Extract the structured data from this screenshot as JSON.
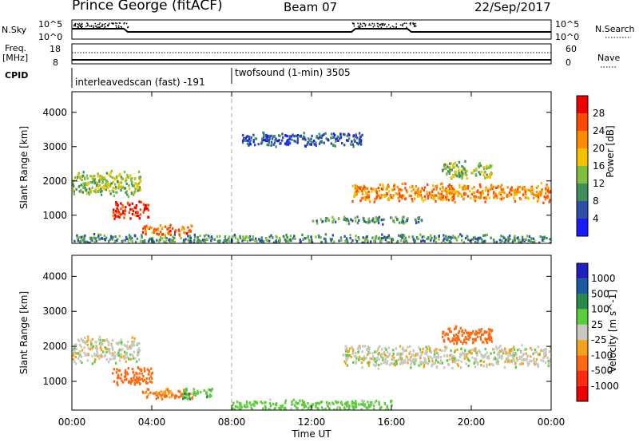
{
  "header": {
    "station": "Prince George (fitACF)",
    "beam": "Beam 07",
    "date": "22/Sep/2017"
  },
  "top_panels": {
    "nsky_label": "N.Sky",
    "nsky_ticks": [
      "10^5",
      "10^0"
    ],
    "nsearch_label": "N.Search",
    "nsearch_ticks": [
      "10^5",
      "10^0"
    ],
    "freq_label": "Freq.",
    "freq_unit": "[MHz]",
    "freq_ticks": [
      "18",
      "8"
    ],
    "nave_label": "Nave",
    "nave_ticks": [
      "60",
      "0"
    ],
    "cpid_label": "CPID",
    "cpid_segments": [
      {
        "label": "interleavedscan (fast) -191",
        "start": "00:00",
        "end": "08:00"
      },
      {
        "label": "twofsound (1-min) 3505",
        "start": "08:00",
        "end": "24:00"
      }
    ]
  },
  "colors": {
    "power_scale": [
      "#1a1aff",
      "#2d4fa8",
      "#3e8f5c",
      "#7fbf3f",
      "#f2c200",
      "#ff8c00",
      "#ff4a00",
      "#ee0000"
    ],
    "velocity_scale": [
      "#2020c0",
      "#1a5aa0",
      "#2a8a4a",
      "#5acd3a",
      "#c8c8c0",
      "#f5a21c",
      "#ff6a10",
      "#ff2a10",
      "#ee0000"
    ]
  },
  "chart_data": [
    {
      "type": "heatmap",
      "title": "",
      "xlabel": "",
      "ylabel": "Slant Range [km]",
      "xlim_hours": [
        0,
        24
      ],
      "ylim": [
        180,
        4600
      ],
      "x_ticks": [
        "00:00",
        "04:00",
        "08:00",
        "12:00",
        "16:00",
        "20:00",
        "00:00"
      ],
      "y_ticks": [
        1000,
        2000,
        3000,
        4000
      ],
      "colorbar": {
        "label": "Power [dB]",
        "ticks": [
          4,
          8,
          12,
          16,
          20,
          24,
          28
        ]
      },
      "echo_regions": [
        {
          "t_start": 0.0,
          "t_end": 3.4,
          "range_center": 1900,
          "range_width": 700,
          "power": 14
        },
        {
          "t_start": 2.0,
          "t_end": 3.8,
          "range_center": 1150,
          "range_width": 450,
          "power": 28
        },
        {
          "t_start": 3.5,
          "t_end": 6.0,
          "range_center": 550,
          "range_width": 300,
          "power": 24
        },
        {
          "t_start": 0.0,
          "t_end": 24.0,
          "range_center": 300,
          "range_width": 250,
          "power": 10
        },
        {
          "t_start": 8.5,
          "t_end": 14.5,
          "range_center": 3200,
          "range_width": 400,
          "power": 6
        },
        {
          "t_start": 14.0,
          "t_end": 24.0,
          "range_center": 1650,
          "range_width": 500,
          "power": 22
        },
        {
          "t_start": 18.5,
          "t_end": 21.0,
          "range_center": 2300,
          "range_width": 500,
          "power": 14
        },
        {
          "t_start": 12.0,
          "t_end": 17.5,
          "range_center": 850,
          "range_width": 200,
          "power": 10
        }
      ]
    },
    {
      "type": "heatmap",
      "title": "",
      "xlabel": "Time UT",
      "ylabel": "Slant Range [km]",
      "xlim_hours": [
        0,
        24
      ],
      "ylim": [
        180,
        4600
      ],
      "x_ticks": [
        "00:00",
        "04:00",
        "08:00",
        "12:00",
        "16:00",
        "20:00",
        "00:00"
      ],
      "y_ticks": [
        1000,
        2000,
        3000,
        4000
      ],
      "colorbar": {
        "label": "Velocity [m s^-1]",
        "ticks": [
          1000,
          500,
          100,
          25,
          -25,
          -100,
          -500,
          -1000
        ]
      },
      "echo_regions": [
        {
          "t_start": 0.0,
          "t_end": 3.4,
          "range_center": 1900,
          "range_width": 700,
          "velocity": 0
        },
        {
          "t_start": 2.0,
          "t_end": 4.0,
          "range_center": 1150,
          "range_width": 500,
          "velocity": -150
        },
        {
          "t_start": 3.5,
          "t_end": 6.0,
          "range_center": 650,
          "range_width": 300,
          "velocity": -120
        },
        {
          "t_start": 5.5,
          "t_end": 7.0,
          "range_center": 650,
          "range_width": 300,
          "velocity": 80
        },
        {
          "t_start": 8.0,
          "t_end": 16.0,
          "range_center": 300,
          "range_width": 300,
          "velocity": 60
        },
        {
          "t_start": 13.5,
          "t_end": 24.0,
          "range_center": 1700,
          "range_width": 600,
          "velocity": 0
        },
        {
          "t_start": 18.5,
          "t_end": 21.0,
          "range_center": 2300,
          "range_width": 500,
          "velocity": -200
        }
      ]
    }
  ]
}
